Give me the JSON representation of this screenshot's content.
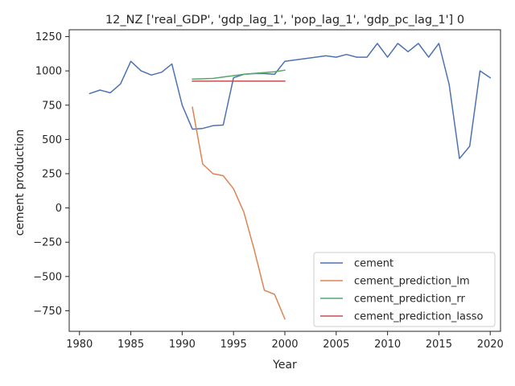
{
  "chart_data": {
    "type": "line",
    "title": "12_NZ ['real_GDP', 'gdp_lag_1', 'pop_lag_1', 'gdp_pc_lag_1'] 0",
    "xlabel": "Year",
    "ylabel": "cement production",
    "xlim": [
      1979,
      2021
    ],
    "ylim": [
      -900,
      1300
    ],
    "xticks": [
      1980,
      1985,
      1990,
      1995,
      2000,
      2005,
      2010,
      2015,
      2020
    ],
    "yticks": [
      -750,
      -500,
      -250,
      0,
      250,
      500,
      750,
      1000,
      1250
    ],
    "grid": false,
    "legend_position": "lower-right",
    "series": [
      {
        "name": "cement",
        "color": "#4c72b0",
        "x": [
          1981,
          1982,
          1983,
          1984,
          1985,
          1986,
          1987,
          1988,
          1989,
          1990,
          1991,
          1992,
          1993,
          1994,
          1995,
          1996,
          1997,
          1998,
          1999,
          2000,
          2004,
          2005,
          2006,
          2007,
          2008,
          2009,
          2010,
          2011,
          2012,
          2013,
          2014,
          2015,
          2016,
          2017,
          2018,
          2019,
          2020
        ],
        "y": [
          835,
          860,
          840,
          905,
          1070,
          1000,
          970,
          990,
          1050,
          750,
          575,
          580,
          600,
          605,
          950,
          975,
          980,
          980,
          975,
          1070,
          1110,
          1100,
          1120,
          1100,
          1100,
          1200,
          1100,
          1200,
          1140,
          1200,
          1100,
          1200,
          900,
          360,
          450,
          1000,
          950
        ]
      },
      {
        "name": "cement_prediction_lm",
        "color": "#dd8452",
        "x": [
          1991,
          1992,
          1993,
          1994,
          1995,
          1996,
          1997,
          1998,
          1999,
          2000
        ],
        "y": [
          735,
          320,
          250,
          235,
          140,
          -30,
          -300,
          -600,
          -630,
          -810
        ]
      },
      {
        "name": "cement_prediction_rr",
        "color": "#55a868",
        "x": [
          1991,
          1992,
          1993,
          1994,
          1995,
          1996,
          1997,
          1998,
          1999,
          2000
        ],
        "y": [
          940,
          942,
          945,
          955,
          965,
          975,
          982,
          988,
          993,
          1005
        ]
      },
      {
        "name": "cement_prediction_lasso",
        "color": "#c44e52",
        "x": [
          1991,
          1992,
          1993,
          1994,
          1995,
          1996,
          1997,
          1998,
          1999,
          2000
        ],
        "y": [
          925,
          925,
          925,
          925,
          925,
          925,
          925,
          925,
          925,
          925
        ]
      }
    ]
  }
}
